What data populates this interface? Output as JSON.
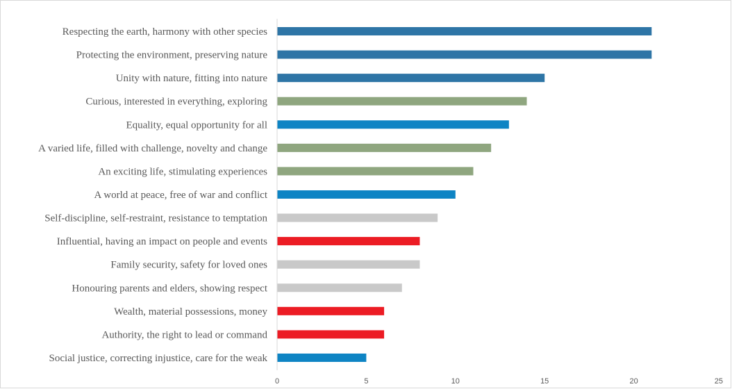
{
  "chart_data": {
    "type": "bar",
    "orientation": "horizontal",
    "title": "",
    "xlabel": "",
    "ylabel": "",
    "xlim": [
      0,
      25
    ],
    "x_ticks": [
      0,
      5,
      10,
      15,
      20,
      25
    ],
    "x_tick_labels": [
      "0",
      "5",
      "10",
      "15",
      "20",
      "25"
    ],
    "grid": false,
    "legend": "none",
    "categories": [
      "Respecting the earth, harmony with other species",
      "Protecting the environment, preserving nature",
      "Unity with nature, fitting into nature",
      "Curious, interested in everything, exploring",
      "Equality, equal opportunity for all",
      "A varied life, filled with challenge, novelty and change",
      "An exciting life, stimulating experiences",
      "A world at peace, free of war and conflict",
      "Self-discipline, self-restraint, resistance to temptation",
      "Influential, having an impact on people and events",
      "Family security, safety for loved ones",
      "Honouring parents and elders, showing respect",
      "Wealth, material possessions, money",
      "Authority, the right to lead or command",
      "Social justice, correcting injustice, care for the weak"
    ],
    "values": [
      21,
      21,
      15,
      14,
      13,
      12,
      11,
      10,
      9,
      8,
      8,
      7,
      6,
      6,
      5
    ],
    "bar_colors": [
      "#2e75a6",
      "#2e75a6",
      "#2e75a6",
      "#8fa67f",
      "#0e84c4",
      "#8fa67f",
      "#8fa67f",
      "#0e84c4",
      "#c9c9c9",
      "#ec1c24",
      "#c9c9c9",
      "#c9c9c9",
      "#ec1c24",
      "#ec1c24",
      "#0e84c4"
    ],
    "axis_color": "#d9d9d9",
    "text_color": "#595959"
  }
}
